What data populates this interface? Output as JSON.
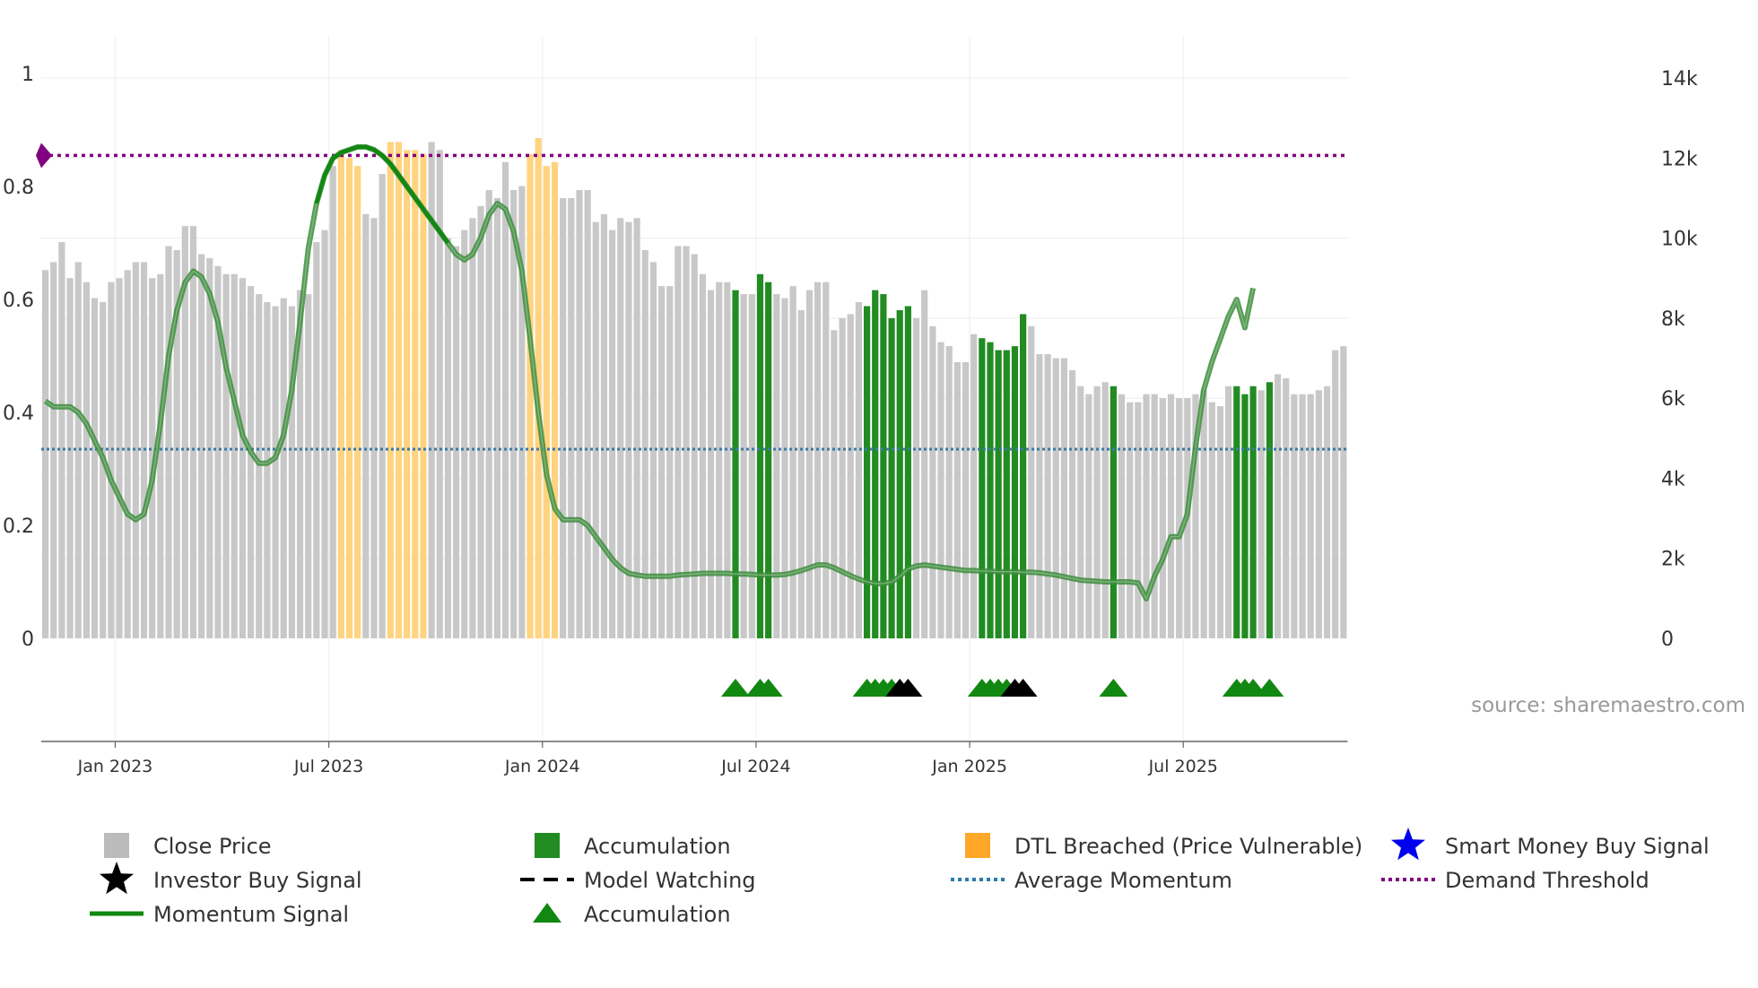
{
  "chart_data": {
    "type": "bar",
    "source": "source: sharemaestro.com",
    "y_left": {
      "range": [
        0,
        1
      ],
      "ticks": [
        "0",
        "0.2",
        "0.4",
        "0.6",
        "0.8",
        "1"
      ],
      "tick_values": [
        0,
        0.2,
        0.4,
        0.6,
        0.8,
        1.0
      ]
    },
    "y_right": {
      "range": [
        0,
        14000
      ],
      "ticks": [
        "0",
        "2k",
        "4k",
        "6k",
        "8k",
        "10k",
        "12k",
        "14k"
      ],
      "tick_values": [
        0,
        2000,
        4000,
        6000,
        8000,
        10000,
        12000,
        14000
      ]
    },
    "x_ticks": {
      "labels": [
        "Jan 2023",
        "Jul 2023",
        "Jan 2024",
        "Jul 2024",
        "Jan 2025",
        "Jul 2025"
      ],
      "week_index": [
        9,
        35,
        61,
        87,
        113,
        139
      ]
    },
    "close_price": [
      9200,
      9400,
      9900,
      9000,
      9400,
      8900,
      8500,
      8400,
      8900,
      9000,
      9200,
      9400,
      9400,
      9000,
      9100,
      9800,
      9700,
      10300,
      10300,
      9600,
      9500,
      9300,
      9100,
      9100,
      9000,
      8800,
      8600,
      8400,
      8300,
      8500,
      8300,
      8700,
      8600,
      9900,
      10200,
      11800,
      12200,
      12000,
      11800,
      10600,
      10500,
      11600,
      12400,
      12400,
      12200,
      12200,
      12100,
      12400,
      12200,
      10000,
      9800,
      10200,
      10500,
      10800,
      11200,
      11000,
      11900,
      11200,
      11300,
      12100,
      12500,
      11800,
      11900,
      11000,
      11000,
      11200,
      11200,
      10400,
      10600,
      10200,
      10500,
      10400,
      10500,
      9700,
      9400,
      8800,
      8800,
      9800,
      9800,
      9600,
      9100,
      8700,
      8900,
      8900,
      8700,
      8600,
      8600,
      9100,
      8900,
      8600,
      8500,
      8800,
      8200,
      8700,
      8900,
      8900,
      7700,
      8000,
      8100,
      8400,
      8300,
      8700,
      8600,
      8000,
      8200,
      8300,
      8000,
      8700,
      7800,
      7400,
      7300,
      6900,
      6900,
      7600,
      7500,
      7400,
      7200,
      7200,
      7300,
      8100,
      7800,
      7100,
      7100,
      7000,
      7000,
      6700,
      6300,
      6100,
      6300,
      6400,
      6300,
      6100,
      5900,
      5900,
      6100,
      6100,
      6000,
      6100,
      6000,
      6000,
      6100,
      6200,
      5900,
      5800,
      6300,
      6300,
      6100,
      6300,
      6200,
      6400,
      6600,
      6500,
      6100,
      6100,
      6100,
      6200,
      6300,
      7200,
      7300
    ],
    "accumulation_weeks": [
      84,
      87,
      88,
      100,
      101,
      102,
      103,
      104,
      105,
      114,
      115,
      116,
      117,
      118,
      119,
      130,
      145,
      146,
      147,
      149
    ],
    "dtl_breached_weeks": [
      36,
      37,
      38,
      42,
      43,
      44,
      45,
      46,
      59,
      60,
      61,
      62
    ],
    "momentum_signal": [
      0.42,
      0.41,
      0.41,
      0.41,
      0.4,
      0.38,
      0.35,
      0.32,
      0.28,
      0.25,
      0.22,
      0.21,
      0.22,
      0.28,
      0.38,
      0.5,
      0.58,
      0.63,
      0.65,
      0.64,
      0.61,
      0.56,
      0.48,
      0.42,
      0.36,
      0.33,
      0.31,
      0.31,
      0.32,
      0.36,
      0.44,
      0.56,
      0.69,
      0.77,
      0.82,
      0.85,
      0.86,
      0.865,
      0.87,
      0.87,
      0.865,
      0.855,
      0.84,
      0.82,
      0.8,
      0.78,
      0.76,
      0.74,
      0.72,
      0.7,
      0.68,
      0.67,
      0.68,
      0.71,
      0.75,
      0.77,
      0.76,
      0.72,
      0.65,
      0.53,
      0.4,
      0.29,
      0.23,
      0.21,
      0.21,
      0.21,
      0.2,
      0.18,
      0.16,
      0.14,
      0.125,
      0.115,
      0.112,
      0.11,
      0.11,
      0.11,
      0.11,
      0.112,
      0.113,
      0.114,
      0.115,
      0.115,
      0.115,
      0.115,
      0.114,
      0.114,
      0.113,
      0.112,
      0.112,
      0.112,
      0.113,
      0.116,
      0.12,
      0.125,
      0.13,
      0.13,
      0.125,
      0.118,
      0.111,
      0.105,
      0.1,
      0.097,
      0.097,
      0.1,
      0.11,
      0.123,
      0.128,
      0.13,
      0.128,
      0.126,
      0.124,
      0.122,
      0.12,
      0.12,
      0.119,
      0.119,
      0.118,
      0.118,
      0.118,
      0.117,
      0.117,
      0.116,
      0.114,
      0.112,
      0.109,
      0.106,
      0.103,
      0.102,
      0.101,
      0.1,
      0.1,
      0.1,
      0.1,
      0.098,
      0.07,
      0.11,
      0.14,
      0.18,
      0.18,
      0.22,
      0.34,
      0.44,
      0.49,
      0.53,
      0.57,
      0.6,
      0.55,
      0.62
    ],
    "momentum_strong_segment_weeks": [
      33,
      49
    ],
    "average_momentum": 0.335,
    "demand_threshold": 0.855,
    "accumulation_marker_weeks": [
      84,
      87,
      88,
      100,
      101,
      102,
      103,
      114,
      115,
      116,
      117,
      130,
      145,
      146,
      147,
      149
    ],
    "investor_buy_marker_weeks": [
      104,
      105,
      118,
      119
    ],
    "legend": [
      {
        "label": "Close Price",
        "symbol": "square",
        "color": "#bbbbbb"
      },
      {
        "label": "Accumulation",
        "symbol": "square",
        "color": "#228b22"
      },
      {
        "label": "DTL Breached (Price Vulnerable)",
        "symbol": "square",
        "color": "#ffa726"
      },
      {
        "label": "Smart Money Buy Signal",
        "symbol": "star",
        "color": "#0000ee"
      },
      {
        "label": "Investor Buy Signal",
        "symbol": "star",
        "color": "#000000"
      },
      {
        "label": "Model Watching",
        "symbol": "dash",
        "color": "#000000"
      },
      {
        "label": "Average Momentum",
        "symbol": "dot",
        "color": "#2a7ab0"
      },
      {
        "label": "Demand Threshold",
        "symbol": "dot",
        "color": "#800080"
      },
      {
        "label": "Momentum Signal",
        "symbol": "line",
        "color": "#118811"
      },
      {
        "label": "Accumulation",
        "symbol": "triangle",
        "color": "#118811"
      }
    ]
  }
}
